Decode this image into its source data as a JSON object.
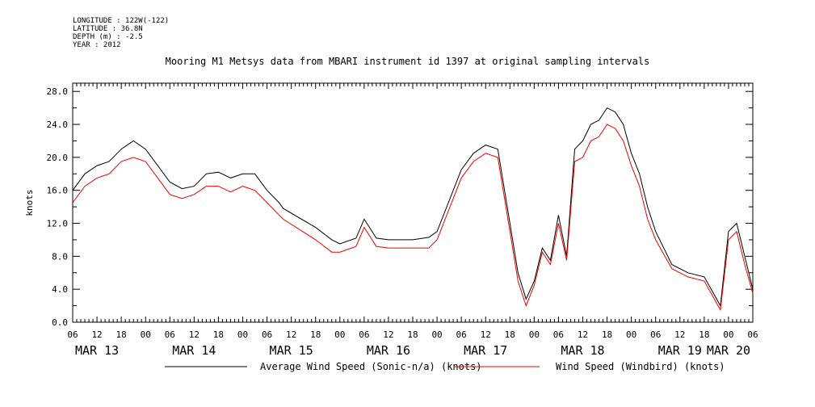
{
  "meta": {
    "longitude": "LONGITUDE : 122W(-122)",
    "latitude": "LATITUDE : 36.8N",
    "depth": "DEPTH (m) : -2.5",
    "year": "YEAR : 2012"
  },
  "chart_data": {
    "type": "line",
    "title": "Mooring M1 Metsys data from MBARI instrument id 1397 at original sampling intervals",
    "ylabel": "knots",
    "xlabel": "",
    "ylim": [
      0,
      29
    ],
    "xlim_hours": [
      0,
      168
    ],
    "yticks": [
      "0.0",
      "4.0",
      "8.0",
      "12.0",
      "16.0",
      "20.0",
      "24.0",
      "28.0"
    ],
    "xtick_labels": [
      "06",
      "12",
      "18",
      "00",
      "06",
      "12",
      "18",
      "00",
      "06",
      "12",
      "18",
      "00",
      "06",
      "12",
      "18",
      "00",
      "06",
      "12",
      "18",
      "00",
      "06",
      "12",
      "18",
      "00",
      "06",
      "12",
      "18",
      "00",
      "06"
    ],
    "day_labels": [
      "MAR 13",
      "MAR 14",
      "MAR 15",
      "MAR 16",
      "MAR 17",
      "MAR 18",
      "MAR 19",
      "MAR 20"
    ],
    "series": [
      {
        "name": "Average Wind Speed (Sonic-n/a) (knots)",
        "color": "#000000",
        "x_hours": [
          0,
          3,
          6,
          9,
          12,
          15,
          18,
          21,
          24,
          27,
          30,
          33,
          36,
          39,
          42,
          45,
          48,
          51,
          52,
          60,
          64,
          66,
          70,
          72,
          75,
          78,
          84,
          88,
          90,
          96,
          99,
          102,
          105,
          108,
          110,
          112,
          114,
          116,
          118,
          120,
          122,
          124,
          126,
          128,
          130,
          132,
          134,
          136,
          138,
          140,
          142,
          144,
          148,
          152,
          156,
          160,
          162,
          164,
          166,
          168
        ],
        "values": [
          16.0,
          18.0,
          19.0,
          19.5,
          21.0,
          22.0,
          21.0,
          19.0,
          17.0,
          16.2,
          16.5,
          18.0,
          18.2,
          17.5,
          18.0,
          18.0,
          16.0,
          14.5,
          13.8,
          11.5,
          10.0,
          9.5,
          10.2,
          12.5,
          10.2,
          10.0,
          10.0,
          10.3,
          11.0,
          18.5,
          20.5,
          21.5,
          21.0,
          12.0,
          6.0,
          2.8,
          5.0,
          9.0,
          7.5,
          13.0,
          8.0,
          21.0,
          22.0,
          24.0,
          24.5,
          26.0,
          25.5,
          24.0,
          20.5,
          18.0,
          14.0,
          11.0,
          7.0,
          6.0,
          5.5,
          2.0,
          11.0,
          12.0,
          8.0,
          4.0
        ]
      },
      {
        "name": "Wind Speed (Windbird) (knots)",
        "color": "#ee0000",
        "x_hours": [
          0,
          3,
          6,
          9,
          12,
          15,
          18,
          21,
          24,
          27,
          30,
          33,
          36,
          39,
          42,
          45,
          48,
          51,
          52,
          60,
          64,
          66,
          70,
          72,
          75,
          78,
          84,
          88,
          90,
          96,
          99,
          102,
          105,
          108,
          110,
          112,
          114,
          116,
          118,
          120,
          122,
          124,
          126,
          128,
          130,
          132,
          134,
          136,
          138,
          140,
          142,
          144,
          148,
          152,
          156,
          160,
          162,
          164,
          166,
          168
        ],
        "values": [
          14.5,
          16.5,
          17.5,
          18.0,
          19.5,
          20.0,
          19.5,
          17.5,
          15.5,
          15.0,
          15.5,
          16.5,
          16.5,
          15.8,
          16.5,
          16.0,
          14.5,
          13.0,
          12.5,
          10.0,
          8.5,
          8.5,
          9.2,
          11.5,
          9.2,
          9.0,
          9.0,
          9.0,
          10.0,
          17.5,
          19.5,
          20.5,
          20.0,
          11.0,
          5.0,
          2.0,
          4.5,
          8.5,
          7.0,
          12.0,
          7.5,
          19.5,
          20.0,
          22.0,
          22.5,
          24.0,
          23.5,
          22.0,
          19.0,
          16.5,
          12.5,
          10.0,
          6.5,
          5.5,
          5.0,
          1.5,
          10.0,
          11.0,
          7.0,
          3.5
        ]
      }
    ],
    "grid": false,
    "legend": "bottom"
  }
}
